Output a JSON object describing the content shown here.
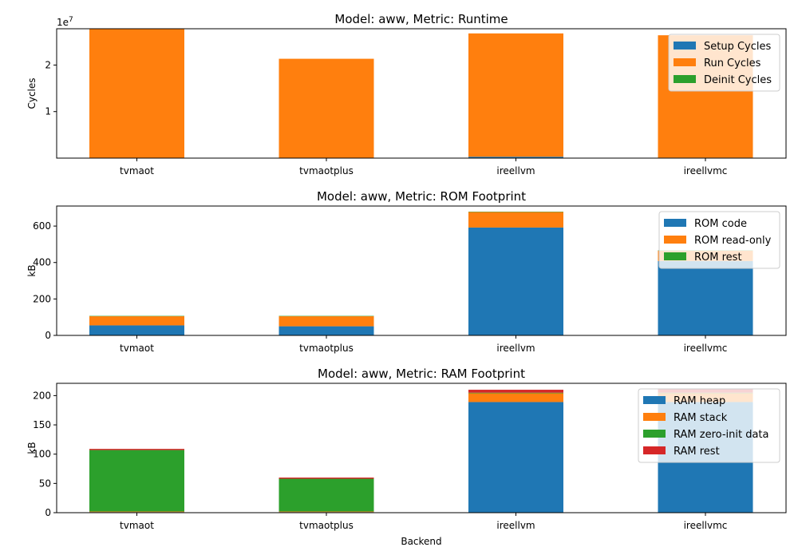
{
  "chart_data": [
    {
      "type": "bar",
      "stacked": true,
      "title": "Model: aww, Metric: Runtime",
      "xlabel": "",
      "ylabel": "Cycles",
      "offset_text": "1e7",
      "categories": [
        "tvmaot",
        "tvmaotplus",
        "ireellvm",
        "ireellvmc"
      ],
      "ylim": [
        0,
        27800000
      ],
      "yticks": [
        {
          "value": 10000000,
          "label": "1"
        },
        {
          "value": 20000000,
          "label": "2"
        }
      ],
      "legend": "upper right",
      "grid": false,
      "series": [
        {
          "name": "Setup Cycles",
          "color": "#1f77b4",
          "values": [
            50000,
            50000,
            300000,
            100000
          ]
        },
        {
          "name": "Run Cycles",
          "color": "#ff7f0e",
          "values": [
            27900000,
            21300000,
            26500000,
            26300000
          ]
        },
        {
          "name": "Deinit Cycles",
          "color": "#2ca02c",
          "values": [
            0,
            0,
            0,
            0
          ]
        }
      ]
    },
    {
      "type": "bar",
      "stacked": true,
      "title": "Model: aww, Metric: ROM Footprint",
      "xlabel": "",
      "ylabel": "kB",
      "categories": [
        "tvmaot",
        "tvmaotplus",
        "ireellvm",
        "ireellvmc"
      ],
      "ylim": [
        0,
        710
      ],
      "yticks": [
        {
          "value": 0,
          "label": "0"
        },
        {
          "value": 200,
          "label": "200"
        },
        {
          "value": 400,
          "label": "400"
        },
        {
          "value": 600,
          "label": "600"
        }
      ],
      "legend": "upper right",
      "grid": false,
      "series": [
        {
          "name": "ROM code",
          "color": "#1f77b4",
          "values": [
            55,
            50,
            592,
            408
          ]
        },
        {
          "name": "ROM read-only",
          "color": "#ff7f0e",
          "values": [
            50,
            55,
            85,
            57
          ]
        },
        {
          "name": "ROM rest",
          "color": "#2ca02c",
          "values": [
            2,
            2,
            2,
            2
          ]
        }
      ]
    },
    {
      "type": "bar",
      "stacked": true,
      "title": "Model: aww, Metric: RAM Footprint",
      "xlabel": "Backend",
      "ylabel": "kB",
      "categories": [
        "tvmaot",
        "tvmaotplus",
        "ireellvm",
        "ireellvmc"
      ],
      "ylim": [
        0,
        221
      ],
      "yticks": [
        {
          "value": 0,
          "label": "0"
        },
        {
          "value": 50,
          "label": "50"
        },
        {
          "value": 100,
          "label": "100"
        },
        {
          "value": 150,
          "label": "150"
        },
        {
          "value": 200,
          "label": "200"
        }
      ],
      "legend": "upper right",
      "grid": false,
      "series": [
        {
          "name": "RAM heap",
          "color": "#1f77b4",
          "values": [
            1,
            1,
            189,
            189
          ]
        },
        {
          "name": "RAM stack",
          "color": "#ff7f0e",
          "values": [
            1,
            1,
            15,
            15
          ]
        },
        {
          "name": "RAM zero-init data",
          "color": "#2ca02c",
          "values": [
            105,
            56,
            1,
            1
          ]
        },
        {
          "name": "RAM rest",
          "color": "#d62728",
          "values": [
            2,
            2,
            5,
            6
          ]
        }
      ]
    }
  ]
}
